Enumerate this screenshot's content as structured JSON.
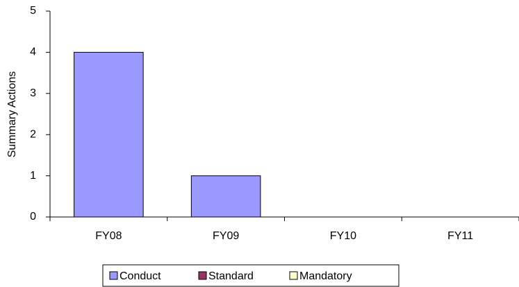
{
  "chart_data": {
    "type": "bar",
    "stacked": true,
    "y_label": "Summary Actions",
    "categories": [
      "FY08",
      "FY09",
      "FY10",
      "FY11"
    ],
    "series": [
      {
        "name": "Conduct",
        "color": "#9999ff",
        "values": [
          4,
          1,
          0,
          0
        ]
      },
      {
        "name": "Standard",
        "color": "#993366",
        "values": [
          0,
          0,
          0,
          0
        ]
      },
      {
        "name": "Mandatory",
        "color": "#ffffcc",
        "values": [
          0,
          0,
          0,
          0
        ]
      }
    ],
    "ylim": [
      0,
      5
    ],
    "yticks": [
      0,
      1,
      2,
      3,
      4,
      5
    ],
    "grid": false,
    "legend": "bottom"
  }
}
